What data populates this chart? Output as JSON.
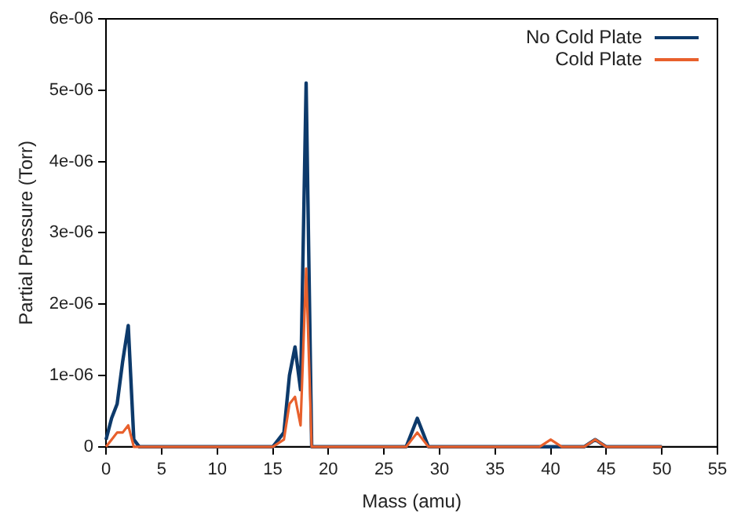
{
  "chart_data": {
    "type": "line",
    "xlabel": "Mass (amu)",
    "ylabel": "Partial Pressure (Torr)",
    "x": [
      0,
      0.5,
      1,
      1.5,
      2,
      2.5,
      3,
      5,
      10,
      15,
      16,
      16.5,
      17,
      17.5,
      18,
      18.5,
      19,
      20,
      25,
      27,
      28,
      29,
      30,
      35,
      39,
      40,
      41,
      42,
      43,
      44,
      45,
      50
    ],
    "series": [
      {
        "name": "No Cold Plate",
        "color": "#0d3a6b",
        "values": [
          1e-07,
          4e-07,
          6e-07,
          1.2e-06,
          1.7e-06,
          1e-07,
          0,
          0,
          0,
          0,
          2e-07,
          1e-06,
          1.4e-06,
          8e-07,
          5.1e-06,
          0,
          0,
          0,
          0,
          0,
          4e-07,
          0,
          0,
          0,
          0,
          0,
          0,
          0,
          0,
          1e-07,
          0,
          0
        ]
      },
      {
        "name": "Cold Plate",
        "color": "#e8602c",
        "values": [
          0,
          1e-07,
          2e-07,
          2e-07,
          3e-07,
          0,
          0,
          0,
          0,
          0,
          1e-07,
          6e-07,
          7e-07,
          3e-07,
          2.5e-06,
          0,
          0,
          0,
          0,
          0,
          2e-07,
          0,
          0,
          0,
          0,
          1e-07,
          0,
          0,
          0,
          1e-07,
          0,
          0
        ]
      }
    ],
    "xlim": [
      0,
      55
    ],
    "xticks": [
      0,
      5,
      10,
      15,
      20,
      25,
      30,
      35,
      40,
      45,
      50,
      55
    ],
    "ylim": [
      0,
      6e-06
    ],
    "yticks": [
      0,
      {
        "value": 1e-06,
        "label": "1e-06"
      },
      {
        "value": 2e-06,
        "label": "2e-06"
      },
      {
        "value": 3e-06,
        "label": "3e-06"
      },
      {
        "value": 4e-06,
        "label": "4e-06"
      },
      {
        "value": 5e-06,
        "label": "5e-06"
      },
      {
        "value": 6e-06,
        "label": "6e-06"
      }
    ],
    "grid": false,
    "legend": "top right",
    "marker": "none",
    "line_style": "solid"
  }
}
